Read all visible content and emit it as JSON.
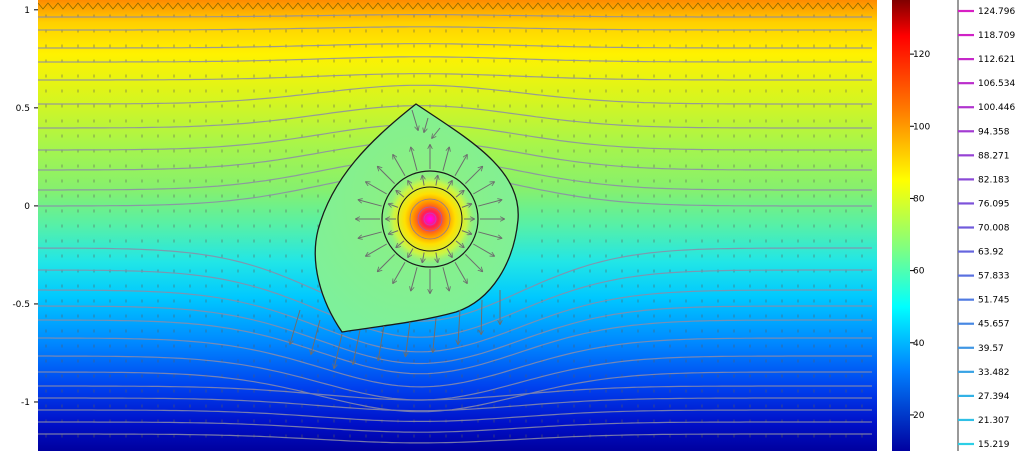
{
  "plot": {
    "x_range": [
      -1.05,
      1.05
    ],
    "y_range": [
      -1.25,
      1.05
    ],
    "y_ticks": [
      {
        "value": 1,
        "label": "1"
      },
      {
        "value": 0.5,
        "label": "0.5"
      },
      {
        "value": 0,
        "label": "0"
      },
      {
        "value": -0.5,
        "label": "-0.5"
      },
      {
        "value": -1,
        "label": "-1"
      }
    ],
    "surface_colormap": "rainbow (blue-cyan-green-yellow-red)",
    "arrows": "gray vector field",
    "streamlines": "gray"
  },
  "colorbar": {
    "range": [
      10,
      135
    ],
    "ticks": [
      {
        "value": 120,
        "label": "120"
      },
      {
        "value": 100,
        "label": "100"
      },
      {
        "value": 80,
        "label": "80"
      },
      {
        "value": 60,
        "label": "60"
      },
      {
        "value": 40,
        "label": "40"
      },
      {
        "value": 20,
        "label": "20"
      }
    ]
  },
  "contour_legend": {
    "levels": [
      {
        "value": 124.796,
        "label": "124.796",
        "color": "#d81fc4"
      },
      {
        "value": 118.709,
        "label": "118.709",
        "color": "#d023c6"
      },
      {
        "value": 112.621,
        "label": "112.621",
        "color": "#c628c9"
      },
      {
        "value": 106.534,
        "label": "106.534",
        "color": "#bb2ecc"
      },
      {
        "value": 100.446,
        "label": "100.446",
        "color": "#b034cf"
      },
      {
        "value": 94.358,
        "label": "94.358",
        "color": "#a33bd2"
      },
      {
        "value": 88.271,
        "label": "88.271",
        "color": "#9642d5"
      },
      {
        "value": 82.183,
        "label": "82.183",
        "color": "#8a4ad7"
      },
      {
        "value": 76.095,
        "label": "76.095",
        "color": "#7d52da"
      },
      {
        "value": 70.008,
        "label": "70.008",
        "color": "#705bdc"
      },
      {
        "value": 63.92,
        "label": "63.92",
        "color": "#6565de"
      },
      {
        "value": 57.833,
        "label": "57.833",
        "color": "#5a70e0"
      },
      {
        "value": 51.745,
        "label": "51.745",
        "color": "#507be2"
      },
      {
        "value": 45.657,
        "label": "45.657",
        "color": "#4788e3"
      },
      {
        "value": 39.57,
        "label": "39.57",
        "color": "#3f96e4"
      },
      {
        "value": 33.482,
        "label": "33.482",
        "color": "#38a3e5"
      },
      {
        "value": 27.394,
        "label": "27.394",
        "color": "#32b2e6"
      },
      {
        "value": 21.307,
        "label": "21.307",
        "color": "#2fc0e6"
      },
      {
        "value": 15.219,
        "label": "15.219",
        "color": "#2dcfe6"
      }
    ]
  }
}
